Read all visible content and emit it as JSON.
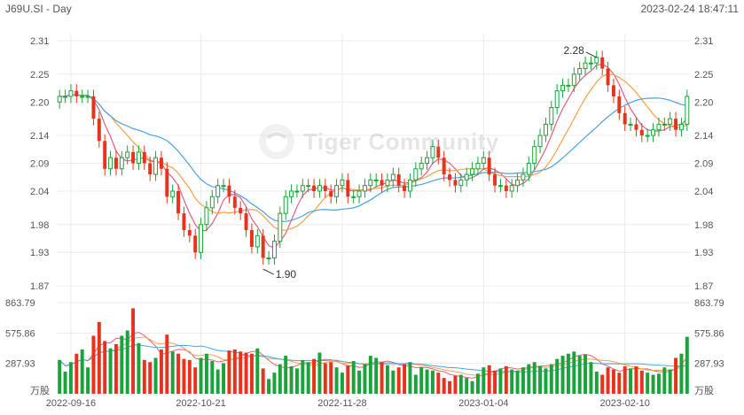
{
  "header": {
    "symbol": "J69U.SI",
    "separator": " - ",
    "period": "Day",
    "timestamp": "2023-02-24 18:47:11"
  },
  "watermark": {
    "text": "Tiger Community",
    "icon": "tiger-logo-icon"
  },
  "colors": {
    "up": "#1aa33a",
    "down": "#e8331c",
    "ma_short": "#e0607e",
    "ma_mid": "#f5a04a",
    "ma_long": "#4aa3df",
    "grid": "#ececec",
    "axis_text": "#555555"
  },
  "chart_data": {
    "type": "candlestick",
    "price_axis": {
      "ylim": [
        1.87,
        2.31
      ],
      "ticks": [
        "2.31",
        "2.25",
        "2.20",
        "2.14",
        "2.09",
        "2.04",
        "1.98",
        "1.93",
        "1.87"
      ]
    },
    "volume_axis": {
      "ylim": [
        0,
        863.79
      ],
      "ticks": [
        "863.79",
        "575.86",
        "287.93"
      ],
      "unit": "万股"
    },
    "x_labels": [
      {
        "label": "2022-09-16",
        "index": 2
      },
      {
        "label": "2022-10-21",
        "index": 25
      },
      {
        "label": "2022-11-28",
        "index": 50
      },
      {
        "label": "2023-01-04",
        "index": 75
      },
      {
        "label": "2023-02-10",
        "index": 100
      }
    ],
    "annotations": [
      {
        "text": "2.28",
        "index": 95,
        "value": 2.28
      },
      {
        "text": "1.90",
        "index": 36,
        "value": 1.9
      }
    ],
    "close": [
      2.21,
      2.21,
      2.22,
      2.21,
      2.21,
      2.21,
      2.17,
      2.13,
      2.08,
      2.1,
      2.08,
      2.1,
      2.11,
      2.09,
      2.11,
      2.09,
      2.07,
      2.1,
      2.08,
      2.03,
      2.04,
      2.0,
      1.97,
      1.96,
      1.93,
      1.98,
      2.01,
      2.03,
      2.05,
      2.05,
      2.03,
      2.01,
      2.0,
      1.97,
      1.94,
      1.96,
      1.92,
      1.92,
      1.95,
      2.0,
      2.03,
      2.04,
      2.04,
      2.05,
      2.05,
      2.04,
      2.05,
      2.04,
      2.03,
      2.05,
      2.06,
      2.03,
      2.03,
      2.04,
      2.05,
      2.06,
      2.06,
      2.05,
      2.06,
      2.07,
      2.05,
      2.04,
      2.06,
      2.08,
      2.09,
      2.1,
      2.12,
      2.1,
      2.07,
      2.06,
      2.05,
      2.06,
      2.07,
      2.08,
      2.09,
      2.1,
      2.07,
      2.05,
      2.05,
      2.04,
      2.05,
      2.06,
      2.07,
      2.09,
      2.12,
      2.14,
      2.16,
      2.19,
      2.22,
      2.23,
      2.23,
      2.25,
      2.26,
      2.27,
      2.27,
      2.28,
      2.26,
      2.23,
      2.21,
      2.18,
      2.16,
      2.16,
      2.15,
      2.14,
      2.14,
      2.15,
      2.16,
      2.16,
      2.17,
      2.15,
      2.16,
      2.21
    ],
    "volume": [
      320,
      210,
      300,
      380,
      420,
      250,
      550,
      680,
      500,
      430,
      470,
      550,
      600,
      810,
      480,
      320,
      300,
      340,
      420,
      560,
      400,
      380,
      330,
      320,
      250,
      340,
      380,
      310,
      230,
      290,
      410,
      420,
      400,
      390,
      380,
      430,
      240,
      140,
      200,
      280,
      360,
      260,
      240,
      320,
      300,
      330,
      390,
      290,
      300,
      250,
      200,
      270,
      310,
      220,
      280,
      360,
      340,
      300,
      270,
      220,
      250,
      280,
      300,
      180,
      250,
      230,
      220,
      200,
      150,
      120,
      170,
      180,
      150,
      120,
      190,
      250,
      270,
      220,
      240,
      260,
      230,
      220,
      250,
      280,
      300,
      260,
      240,
      280,
      330,
      360,
      380,
      400,
      360,
      370,
      300,
      210,
      180,
      250,
      230,
      200,
      260,
      240,
      260,
      220,
      200,
      180,
      190,
      250,
      230,
      340,
      380,
      540
    ]
  }
}
